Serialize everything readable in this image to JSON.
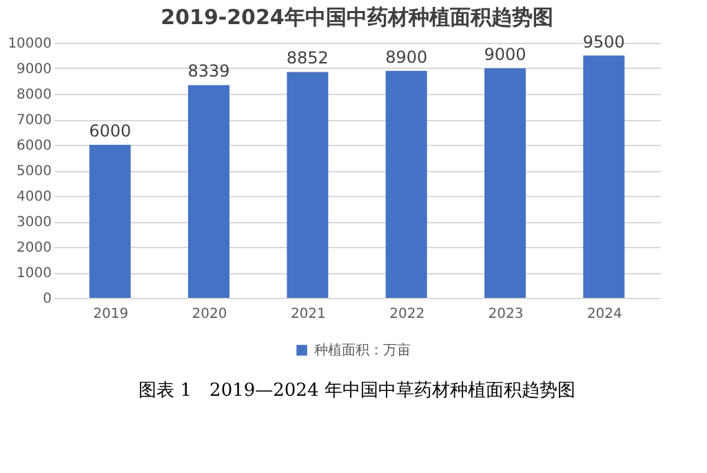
{
  "chart_data": {
    "type": "bar",
    "title": "2019-2024年中国中药材种植面积趋势图",
    "categories": [
      "2019",
      "2020",
      "2021",
      "2022",
      "2023",
      "2024"
    ],
    "series": [
      {
        "name": "种植面积：万亩",
        "color": "#4472c4",
        "values": [
          6000,
          8339,
          8852,
          8900,
          9000,
          9500
        ]
      }
    ],
    "ylim": [
      0,
      10000
    ],
    "yticks": [
      0,
      1000,
      2000,
      3000,
      4000,
      5000,
      6000,
      7000,
      8000,
      9000,
      10000
    ],
    "grid": "y",
    "legend": "bottom",
    "data_labels": true,
    "annotations": [
      "图表 1　2019—2024 年中国中草药材种植面积趋势图"
    ]
  }
}
